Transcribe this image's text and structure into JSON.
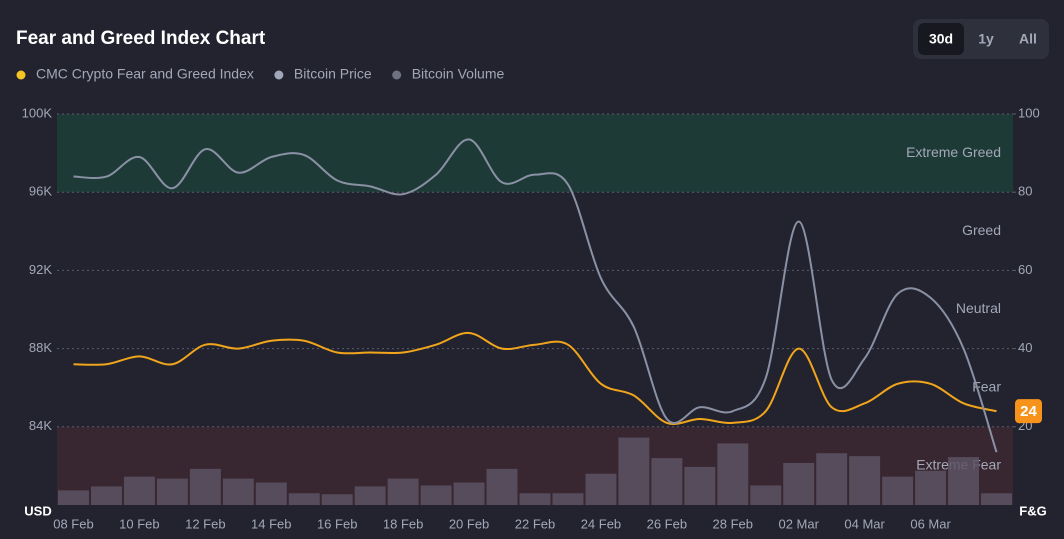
{
  "chart_data": {
    "type": "line",
    "title": "Fear and Greed Index Chart",
    "ranges": [
      "30d",
      "1y",
      "All"
    ],
    "active_range": "30d",
    "ylabel": "USD",
    "y2label": "F&G",
    "categories": [
      "08 Feb",
      null,
      "10 Feb",
      null,
      "12 Feb",
      null,
      "14 Feb",
      null,
      "16 Feb",
      null,
      "18 Feb",
      null,
      "20 Feb",
      null,
      "22 Feb",
      null,
      "24 Feb",
      null,
      "26 Feb",
      null,
      "28 Feb",
      null,
      "02 Mar",
      null,
      "04 Mar",
      null,
      "06 Mar",
      null,
      null
    ],
    "ylim": [
      80000,
      100000
    ],
    "yticks": [
      {
        "value": 100000,
        "label": "100K"
      },
      {
        "value": 96000,
        "label": "96K"
      },
      {
        "value": 92000,
        "label": "92K"
      },
      {
        "value": 88000,
        "label": "88K"
      },
      {
        "value": 84000,
        "label": "84K"
      }
    ],
    "y2lim": [
      0,
      100
    ],
    "y2ticks": [
      100,
      80,
      60,
      40,
      20
    ],
    "y3lim": [
      0,
      400
    ],
    "grid": true,
    "zones": [
      {
        "label": "Extreme Greed",
        "range": [
          80,
          100
        ],
        "color": "#1d3a37"
      },
      {
        "label": "Greed",
        "range": [
          60,
          80
        ]
      },
      {
        "label": "Neutral",
        "range": [
          40,
          60
        ]
      },
      {
        "label": "Fear",
        "range": [
          20,
          40
        ]
      },
      {
        "label": "Extreme Fear",
        "range": [
          0,
          20
        ],
        "color": "#382630"
      }
    ],
    "series": [
      {
        "name": "CMC Crypto Fear and Greed Index",
        "color": "#f5c523",
        "line_color": "#f0a51c",
        "axis": "y2",
        "values": [
          36,
          36,
          38,
          36,
          41,
          40,
          42,
          42,
          39,
          39,
          39,
          41,
          44,
          40,
          41,
          41,
          31,
          28,
          21,
          22,
          21,
          24,
          40,
          25,
          26,
          31,
          31,
          26,
          24
        ]
      },
      {
        "name": "Bitcoin Price",
        "color": "#a1a7bb",
        "line_color": "#8a91a4",
        "values": [
          96800,
          96800,
          97800,
          96200,
          98200,
          97000,
          97800,
          97900,
          96600,
          96300,
          95900,
          96900,
          98700,
          96500,
          96900,
          96400,
          91600,
          89100,
          84400,
          85000,
          84800,
          86500,
          94500,
          86400,
          87500,
          90800,
          90600,
          88000,
          82700
        ]
      },
      {
        "name": "Bitcoin Volume",
        "color": "#6d7182",
        "bar_color": "#5d5364",
        "axis": "y3",
        "values": [
          15,
          19,
          29,
          27,
          37,
          27,
          23,
          12,
          11,
          19,
          27,
          20,
          23,
          37,
          12,
          12,
          32,
          69,
          48,
          39,
          63,
          20,
          43,
          53,
          50,
          29,
          35,
          49,
          12
        ]
      }
    ]
  }
}
